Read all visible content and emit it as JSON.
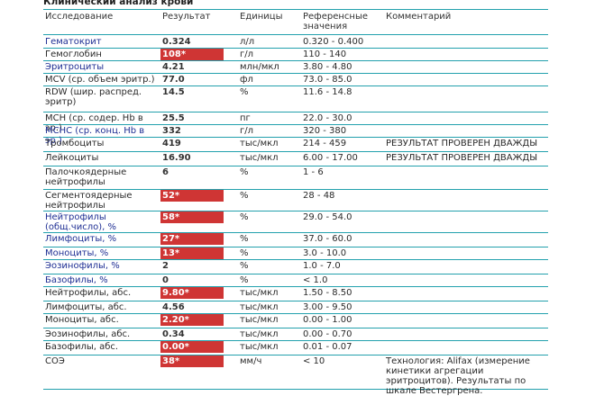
{
  "title": "Клинический анализ крови",
  "columns": {
    "test": "Исследование",
    "result": "Результат",
    "units": "Единицы",
    "reference": "Референсные значения",
    "comment": "Комментарий"
  },
  "rows": [
    {
      "name": "Гематокрит",
      "blue": true,
      "value": "0.324",
      "flag": false,
      "unit": "л/л",
      "ref": "0.320 - 0.400",
      "comment": ""
    },
    {
      "name": "Гемоглобин",
      "blue": false,
      "value": "108*",
      "flag": true,
      "unit": "г/л",
      "ref": "110 - 140",
      "comment": ""
    },
    {
      "name": "Эритроциты",
      "blue": true,
      "value": "4.21",
      "flag": false,
      "unit": "млн/мкл",
      "ref": "3.80 - 4.80",
      "comment": ""
    },
    {
      "name": "MCV (ср. объем эритр.)",
      "blue": false,
      "value": "77.0",
      "flag": false,
      "unit": "фл",
      "ref": "73.0 - 85.0",
      "comment": ""
    },
    {
      "name": "RDW (шир. распред. эритр)",
      "blue": false,
      "value": "14.5",
      "flag": false,
      "unit": "%",
      "ref": "11.6 - 14.8",
      "comment": ""
    },
    {
      "name": "MCH (ср. содер. Hb в эр.)",
      "blue": false,
      "value": "25.5",
      "flag": false,
      "unit": "пг",
      "ref": "22.0 - 30.0",
      "comment": ""
    },
    {
      "name": "MCHC (ср. конц. Hb в эр.)",
      "blue": true,
      "value": "332",
      "flag": false,
      "unit": "г/л",
      "ref": "320 - 380",
      "comment": ""
    },
    {
      "name": "Тромбоциты",
      "blue": false,
      "value": "419",
      "flag": false,
      "unit": "тыс/мкл",
      "ref": "214 - 459",
      "comment": "РЕЗУЛЬТАТ ПРОВЕРЕН ДВАЖДЫ"
    },
    {
      "name": "Лейкоциты",
      "blue": false,
      "value": "16.90",
      "flag": false,
      "unit": "тыс/мкл",
      "ref": "6.00 - 17.00",
      "comment": "РЕЗУЛЬТАТ ПРОВЕРЕН ДВАЖДЫ"
    },
    {
      "name": "Палочкоядерные нейтрофилы",
      "blue": false,
      "value": "6",
      "flag": false,
      "unit": "%",
      "ref": "1 - 6",
      "comment": ""
    },
    {
      "name": "Сегментоядерные нейтрофилы",
      "blue": false,
      "value": "52*",
      "flag": true,
      "unit": "%",
      "ref": "28 - 48",
      "comment": ""
    },
    {
      "name": "Нейтрофилы (общ.число), %",
      "blue": true,
      "value": "58*",
      "flag": true,
      "unit": "%",
      "ref": "29.0 - 54.0",
      "comment": ""
    },
    {
      "name": "Лимфоциты, %",
      "blue": true,
      "value": "27*",
      "flag": true,
      "unit": "%",
      "ref": "37.0 - 60.0",
      "comment": ""
    },
    {
      "name": "Моноциты, %",
      "blue": true,
      "value": "13*",
      "flag": true,
      "unit": "%",
      "ref": "3.0 - 10.0",
      "comment": ""
    },
    {
      "name": "Эозинофилы, %",
      "blue": true,
      "value": "2",
      "flag": false,
      "unit": "%",
      "ref": "1.0 - 7.0",
      "comment": ""
    },
    {
      "name": "Базофилы, %",
      "blue": true,
      "value": "0",
      "flag": false,
      "unit": "%",
      "ref": "< 1.0",
      "comment": ""
    },
    {
      "name": "Нейтрофилы, абс.",
      "blue": false,
      "value": "9.80*",
      "flag": true,
      "unit": "тыс/мкл",
      "ref": "1.50 - 8.50",
      "comment": ""
    },
    {
      "name": "Лимфоциты, абс.",
      "blue": false,
      "value": "4.56",
      "flag": false,
      "unit": "тыс/мкл",
      "ref": "3.00 - 9.50",
      "comment": ""
    },
    {
      "name": "Моноциты, абс.",
      "blue": false,
      "value": "2.20*",
      "flag": true,
      "unit": "тыс/мкл",
      "ref": "0.00 - 1.00",
      "comment": ""
    },
    {
      "name": "Эозинофилы, абс.",
      "blue": false,
      "value": "0.34",
      "flag": false,
      "unit": "тыс/мкл",
      "ref": "0.00 - 0.70",
      "comment": ""
    },
    {
      "name": "Базофилы, абс.",
      "blue": false,
      "value": "0.00*",
      "flag": true,
      "unit": "тыс/мкл",
      "ref": "0.01 - 0.07",
      "comment": ""
    },
    {
      "name": "СОЭ",
      "blue": false,
      "value": "38*",
      "flag": true,
      "unit": "мм/ч",
      "ref": "< 10",
      "comment": "Технология: Alifax (измерение кинетики агрегации эритроцитов). Результаты по шкале Вестергрена."
    }
  ],
  "colors": {
    "flag": "#cf3534",
    "name_blue": "#1f2f94",
    "rule": "#22a0ad"
  }
}
